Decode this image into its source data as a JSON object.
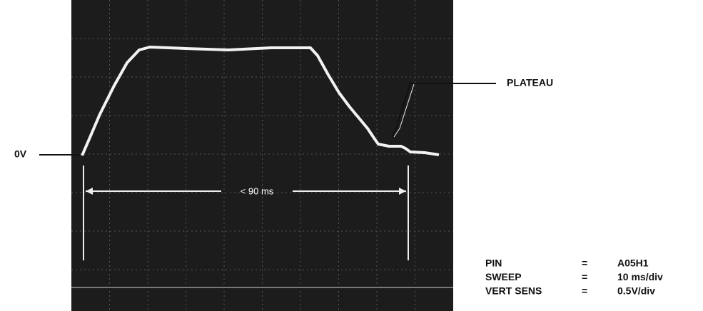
{
  "labels": {
    "zero": "0V",
    "plateau": "PLATEAU",
    "duration": "< 90 ms"
  },
  "settings": {
    "rows": [
      [
        "PIN",
        "=",
        "A05H1"
      ],
      [
        "SWEEP",
        "=",
        "10 ms/div"
      ],
      [
        "VERT SENS",
        "=",
        "0.5V/div"
      ]
    ]
  }
}
